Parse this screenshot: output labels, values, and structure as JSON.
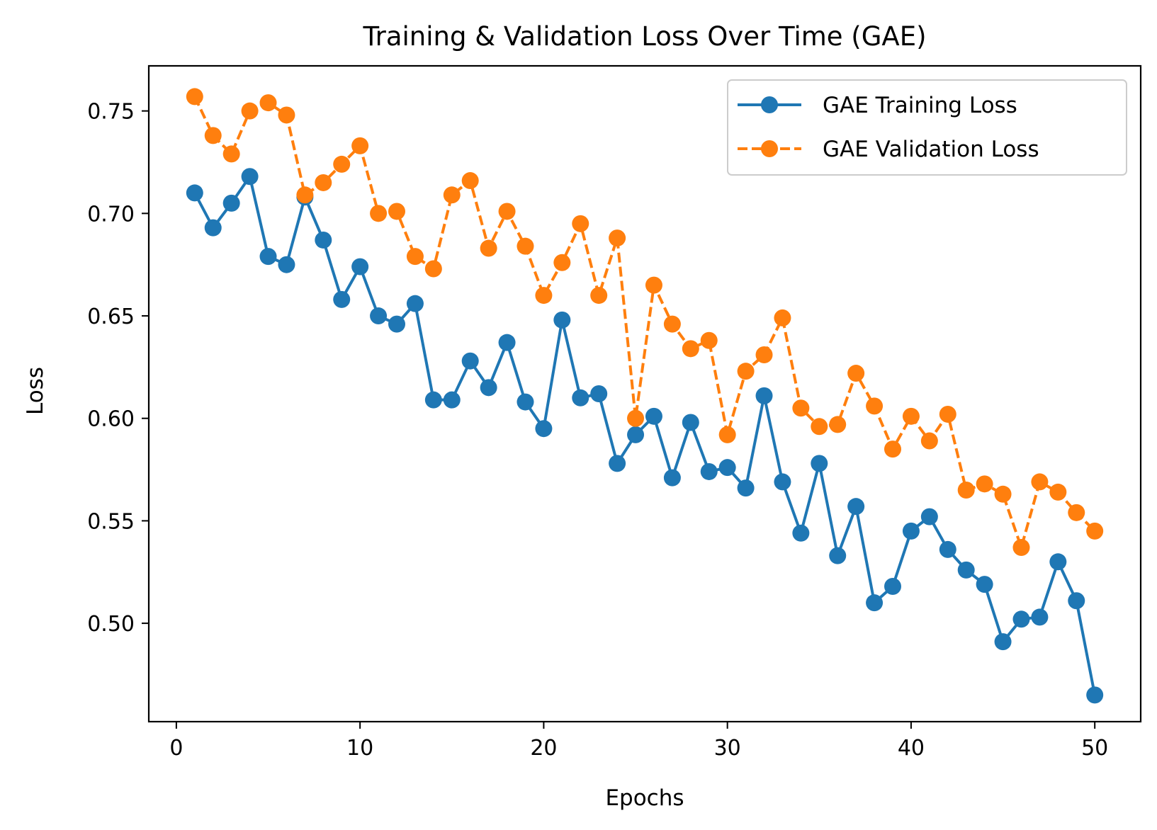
{
  "chart_data": {
    "type": "line",
    "title": "Training & Validation Loss Over Time (GAE)",
    "xlabel": "Epochs",
    "ylabel": "Loss",
    "xlim": [
      -1.5,
      52.5
    ],
    "ylim": [
      0.452,
      0.772
    ],
    "xticks": [
      0,
      10,
      20,
      30,
      40,
      50
    ],
    "yticks": [
      0.5,
      0.55,
      0.6,
      0.65,
      0.7,
      0.75
    ],
    "grid": false,
    "legend_position": "top-right",
    "x": [
      1,
      2,
      3,
      4,
      5,
      6,
      7,
      8,
      9,
      10,
      11,
      12,
      13,
      14,
      15,
      16,
      17,
      18,
      19,
      20,
      21,
      22,
      23,
      24,
      25,
      26,
      27,
      28,
      29,
      30,
      31,
      32,
      33,
      34,
      35,
      36,
      37,
      38,
      39,
      40,
      41,
      42,
      43,
      44,
      45,
      46,
      47,
      48,
      49,
      50
    ],
    "series": [
      {
        "name": "GAE Training Loss",
        "color": "#1f77b4",
        "linestyle": "solid",
        "marker": "circle",
        "values": [
          0.71,
          0.693,
          0.705,
          0.718,
          0.679,
          0.675,
          0.708,
          0.687,
          0.658,
          0.674,
          0.65,
          0.646,
          0.656,
          0.609,
          0.609,
          0.628,
          0.615,
          0.637,
          0.608,
          0.595,
          0.648,
          0.61,
          0.612,
          0.578,
          0.592,
          0.601,
          0.571,
          0.598,
          0.574,
          0.576,
          0.566,
          0.611,
          0.569,
          0.544,
          0.578,
          0.533,
          0.557,
          0.51,
          0.518,
          0.545,
          0.552,
          0.536,
          0.526,
          0.519,
          0.491,
          0.502,
          0.503,
          0.53,
          0.511,
          0.465
        ]
      },
      {
        "name": "GAE Validation Loss",
        "color": "#ff7f0e",
        "linestyle": "dashed",
        "marker": "circle",
        "values": [
          0.757,
          0.738,
          0.729,
          0.75,
          0.754,
          0.748,
          0.709,
          0.715,
          0.724,
          0.733,
          0.7,
          0.701,
          0.679,
          0.673,
          0.709,
          0.716,
          0.683,
          0.701,
          0.684,
          0.66,
          0.676,
          0.695,
          0.66,
          0.688,
          0.6,
          0.665,
          0.646,
          0.634,
          0.638,
          0.592,
          0.623,
          0.631,
          0.649,
          0.605,
          0.596,
          0.597,
          0.622,
          0.606,
          0.585,
          0.601,
          0.589,
          0.602,
          0.565,
          0.568,
          0.563,
          0.537,
          0.569,
          0.564,
          0.554,
          0.545
        ]
      }
    ]
  }
}
